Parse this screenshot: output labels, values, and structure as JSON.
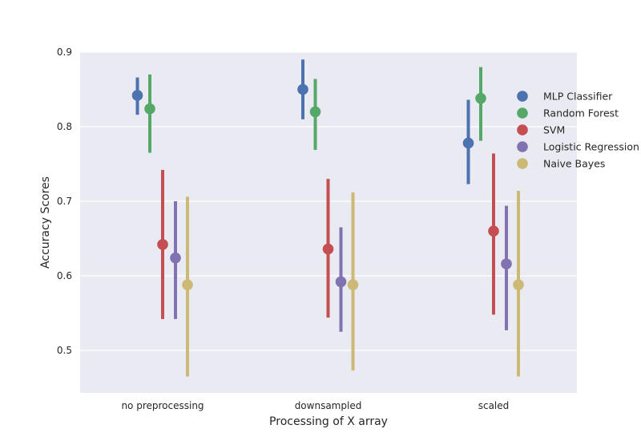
{
  "chart_data": {
    "type": "pointplot",
    "xlabel": "Processing of X array",
    "ylabel": "Accuracy Scores",
    "categories": [
      "no preprocessing",
      "downsampled",
      "scaled"
    ],
    "ylim": [
      0.443,
      0.9
    ],
    "yticks": [
      0.5,
      0.6,
      0.7,
      0.8,
      0.9
    ],
    "grid": true,
    "legend_position": "right",
    "series": [
      {
        "name": "MLP Classifier",
        "color": "#4c72b0",
        "values": [
          0.842,
          0.85,
          0.778
        ],
        "ci": [
          [
            0.816,
            0.866
          ],
          [
            0.81,
            0.89
          ],
          [
            0.723,
            0.836
          ]
        ]
      },
      {
        "name": "Random Forest",
        "color": "#55a868",
        "values": [
          0.824,
          0.82,
          0.838
        ],
        "ci": [
          [
            0.765,
            0.87
          ],
          [
            0.769,
            0.864
          ],
          [
            0.781,
            0.88
          ]
        ]
      },
      {
        "name": "SVM",
        "color": "#c44e52",
        "values": [
          0.642,
          0.636,
          0.66
        ],
        "ci": [
          [
            0.542,
            0.742
          ],
          [
            0.544,
            0.73
          ],
          [
            0.548,
            0.764
          ]
        ]
      },
      {
        "name": "Logistic Regression",
        "color": "#8172b2",
        "values": [
          0.624,
          0.592,
          0.616
        ],
        "ci": [
          [
            0.542,
            0.7
          ],
          [
            0.525,
            0.665
          ],
          [
            0.527,
            0.694
          ]
        ]
      },
      {
        "name": "Naive Bayes",
        "color": "#ccb974",
        "values": [
          0.588,
          0.588,
          0.588
        ],
        "ci": [
          [
            0.465,
            0.706
          ],
          [
            0.473,
            0.712
          ],
          [
            0.465,
            0.714
          ]
        ]
      }
    ]
  }
}
